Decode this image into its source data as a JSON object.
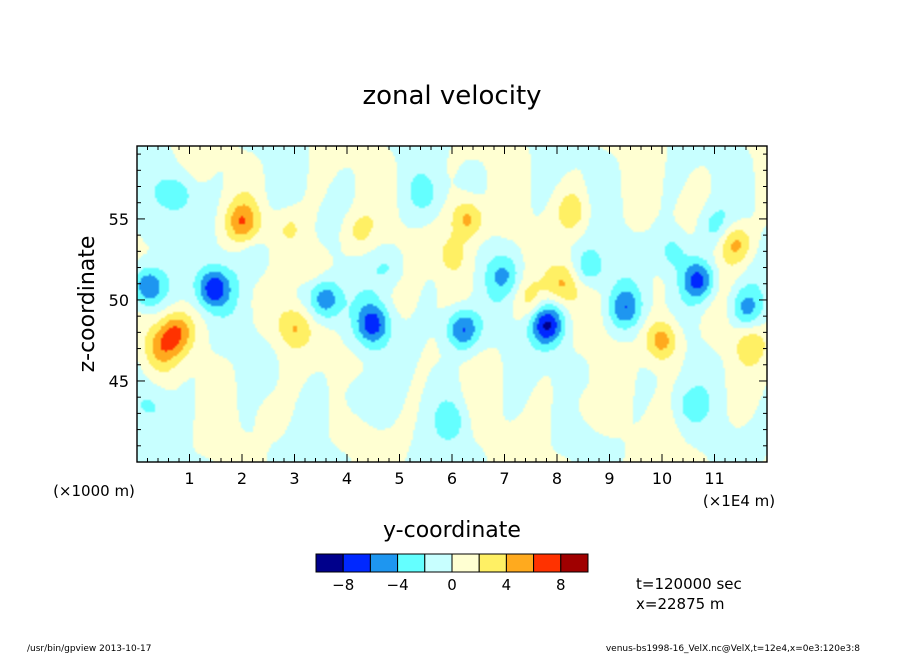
{
  "chart_data": {
    "type": "heatmap",
    "title": "zonal velocity",
    "xlabel": "y-coordinate",
    "ylabel": "z-coordinate",
    "x_unit_left": "(×1000 m)",
    "x_unit_right": "(×1E4 m)",
    "xlim": [
      0,
      12
    ],
    "ylim": [
      40,
      59.5
    ],
    "x_ticks": [
      1,
      2,
      3,
      4,
      5,
      6,
      7,
      8,
      9,
      10,
      11
    ],
    "x_tick_labels": [
      "1",
      "2",
      "3",
      "4",
      "5",
      "6",
      "7",
      "8",
      "9",
      "10",
      "11"
    ],
    "y_ticks": [
      45,
      50,
      55
    ],
    "y_tick_labels": [
      "45",
      "50",
      "55"
    ],
    "colorbar": {
      "levels": [
        -10,
        -8,
        -6,
        -4,
        -2,
        0,
        2,
        4,
        6,
        8,
        10
      ],
      "colors": [
        "#00008b",
        "#0028ff",
        "#1e96f0",
        "#64ffff",
        "#c8ffff",
        "#ffffd2",
        "#fff064",
        "#ffaa1e",
        "#ff3200",
        "#a00000"
      ],
      "tick_values": [
        -8,
        -4,
        0,
        4,
        8
      ],
      "tick_labels": [
        "−8",
        "−4",
        "0",
        "4",
        "8"
      ]
    },
    "anomalies": [
      {
        "x": 0.2,
        "z": 50.8,
        "v": -7
      },
      {
        "x": 0.75,
        "z": 48.0,
        "v": 5.5
      },
      {
        "x": 0.45,
        "z": 47.0,
        "v": 4
      },
      {
        "x": 1.45,
        "z": 50.7,
        "v": -7.5
      },
      {
        "x": 0.8,
        "z": 56.5,
        "v": -3.5
      },
      {
        "x": 2.0,
        "z": 54.8,
        "v": 5
      },
      {
        "x": 2.25,
        "z": 52.5,
        "v": -2.5
      },
      {
        "x": 2.9,
        "z": 54.5,
        "v": 2.5
      },
      {
        "x": 3.0,
        "z": 48.3,
        "v": 4
      },
      {
        "x": 3.6,
        "z": 50.0,
        "v": -6
      },
      {
        "x": 3.3,
        "z": 52.2,
        "v": 2.5
      },
      {
        "x": 4.5,
        "z": 48.5,
        "v": -6.5
      },
      {
        "x": 4.2,
        "z": 54.2,
        "v": 2.5
      },
      {
        "x": 4.8,
        "z": 52.0,
        "v": -2.5
      },
      {
        "x": 5.5,
        "z": 56.5,
        "v": -2.5
      },
      {
        "x": 6.2,
        "z": 48.2,
        "v": -7
      },
      {
        "x": 6.3,
        "z": 55.0,
        "v": 5.5
      },
      {
        "x": 6.0,
        "z": 52.8,
        "v": 3
      },
      {
        "x": 7.0,
        "z": 51.5,
        "v": -3.5
      },
      {
        "x": 7.5,
        "z": 50.0,
        "v": 2.5
      },
      {
        "x": 7.8,
        "z": 48.5,
        "v": -8
      },
      {
        "x": 8.1,
        "z": 51.0,
        "v": 4.5
      },
      {
        "x": 8.6,
        "z": 52.0,
        "v": -4
      },
      {
        "x": 8.3,
        "z": 55.5,
        "v": 3
      },
      {
        "x": 9.3,
        "z": 49.5,
        "v": -5
      },
      {
        "x": 10.0,
        "z": 47.5,
        "v": 5.5
      },
      {
        "x": 10.2,
        "z": 53.0,
        "v": -3
      },
      {
        "x": 10.7,
        "z": 51.2,
        "v": -7
      },
      {
        "x": 11.0,
        "z": 54.5,
        "v": -3
      },
      {
        "x": 11.4,
        "z": 53.5,
        "v": 5
      },
      {
        "x": 11.6,
        "z": 49.5,
        "v": -4.5
      },
      {
        "x": 11.7,
        "z": 47.3,
        "v": 3
      },
      {
        "x": 0.3,
        "z": 43.5,
        "v": -2.5
      },
      {
        "x": 2.5,
        "z": 43.0,
        "v": 1.5
      },
      {
        "x": 4.2,
        "z": 44.0,
        "v": -2.5
      },
      {
        "x": 6.0,
        "z": 42.5,
        "v": -2.5
      },
      {
        "x": 8.5,
        "z": 43.5,
        "v": 1.5
      },
      {
        "x": 10.5,
        "z": 43.5,
        "v": -2.5
      }
    ]
  },
  "info": {
    "time": "t=120000 sec",
    "x_pos": "x=22875 m"
  },
  "footer": {
    "left": "/usr/bin/gpview  2013-10-17",
    "right": "venus-bs1998-16_VelX.nc@VelX,t=12e4,x=0e3:120e3:8"
  }
}
